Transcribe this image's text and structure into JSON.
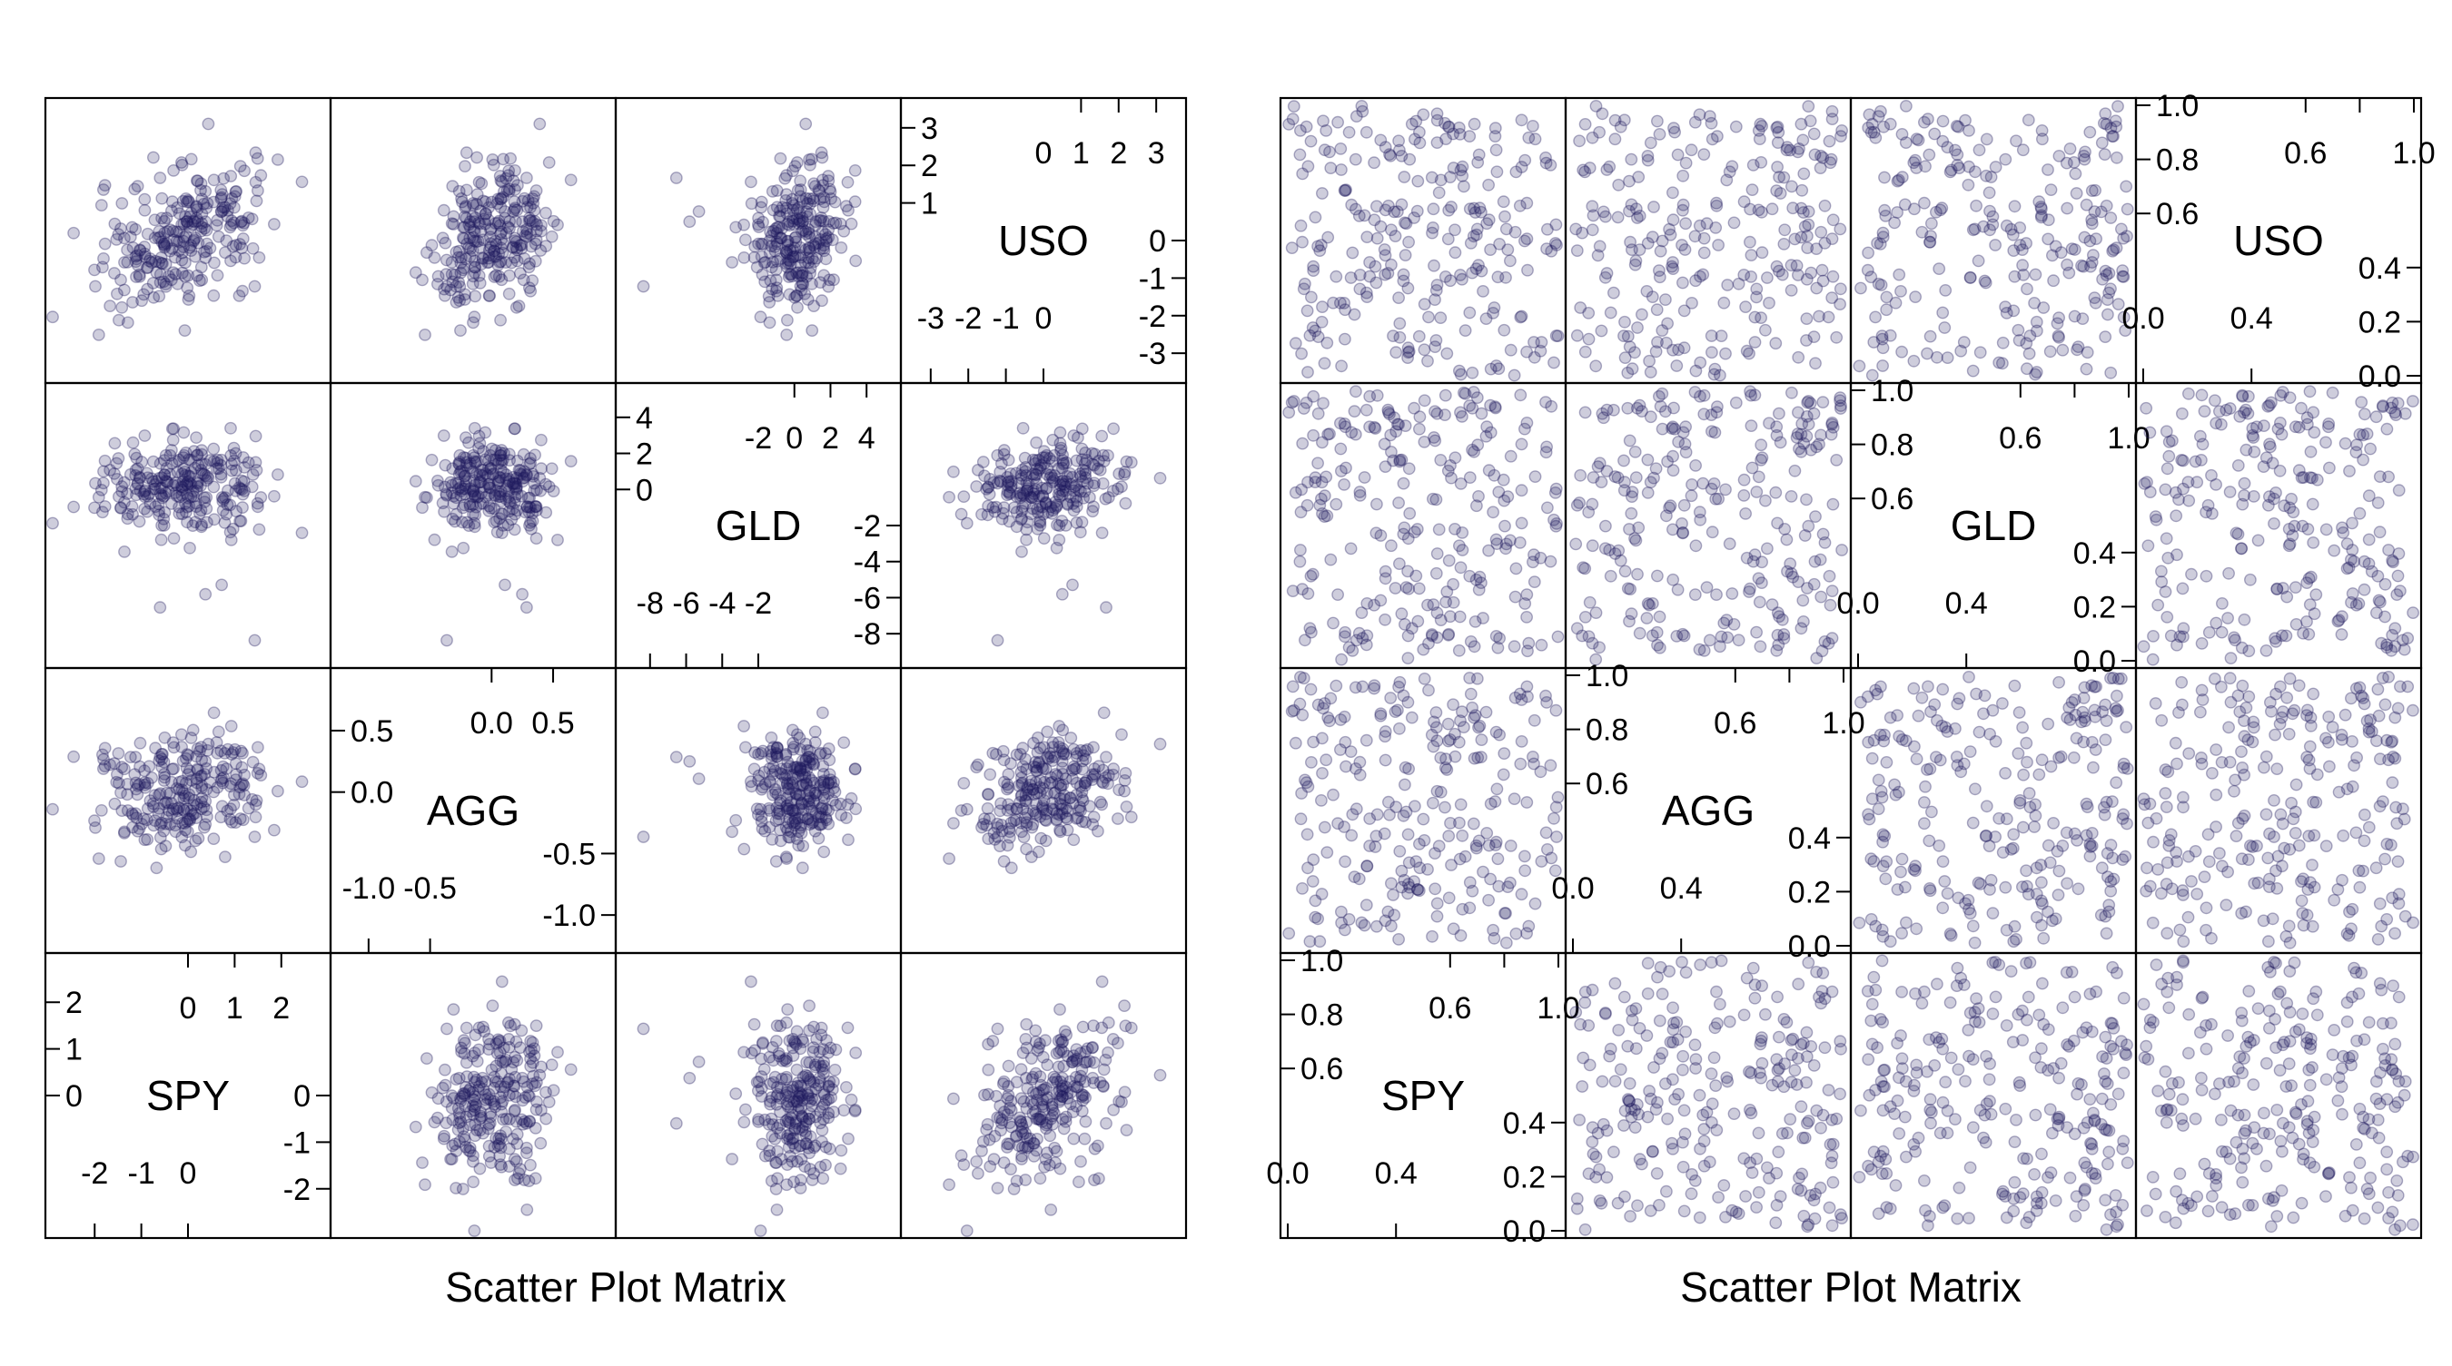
{
  "colors": {
    "point": "#1f1a5e",
    "point_opacity": 0.22,
    "frame": "#000000"
  },
  "chart_data": [
    {
      "type": "scatter",
      "title": "",
      "xlabel": "Scatter Plot Matrix",
      "ylabel": "",
      "variables": [
        {
          "name": "USO",
          "range": [
            -3.6,
            3.6
          ],
          "ticks_a": [
            "0",
            "1",
            "2",
            "3"
          ],
          "ticks_a_values": [
            0,
            1,
            2,
            3
          ],
          "ticks_b": [
            "0",
            "-1",
            "-2",
            "-3"
          ],
          "ticks_b_values": [
            0,
            -1,
            -2,
            -3
          ],
          "ticks_c": [
            "1",
            "2",
            "3"
          ],
          "ticks_c_values": [
            1,
            2,
            3
          ],
          "ticks_d": [
            "-3",
            "-2",
            "-1",
            "0"
          ],
          "ticks_d_values": [
            -3,
            -2,
            -1,
            0
          ]
        },
        {
          "name": "GLD",
          "range": [
            -9.5,
            5.5
          ],
          "ticks_a": [
            "-2",
            "0",
            "2",
            "4"
          ],
          "ticks_a_values": [
            -2,
            0,
            2,
            4
          ],
          "ticks_b": [
            "-2",
            "-4",
            "-6",
            "-8"
          ],
          "ticks_b_values": [
            -2,
            -4,
            -6,
            -8
          ],
          "ticks_c": [
            "0",
            "2",
            "4"
          ],
          "ticks_c_values": [
            0,
            2,
            4
          ],
          "ticks_d": [
            "-8",
            "-6",
            "-4",
            "-2"
          ],
          "ticks_d_values": [
            -8,
            -6,
            -4,
            -2
          ]
        },
        {
          "name": "AGG",
          "range": [
            -1.25,
            0.95
          ],
          "ticks_a": [
            "0.0",
            "0.5"
          ],
          "ticks_a_values": [
            0.0,
            0.5
          ],
          "ticks_b": [
            "-0.5",
            "-1.0"
          ],
          "ticks_b_values": [
            -0.5,
            -1.0
          ],
          "ticks_c": [
            "0.5",
            "0.0"
          ],
          "ticks_c_values": [
            0.5,
            0.0
          ],
          "ticks_d": [
            "-1.0",
            "-0.5"
          ],
          "ticks_d_values": [
            -1.0,
            -0.5
          ]
        },
        {
          "name": "SPY",
          "range": [
            -2.9,
            2.9
          ],
          "ticks_a": [
            "0",
            "1",
            "2"
          ],
          "ticks_a_values": [
            0,
            1,
            2
          ],
          "ticks_b": [
            "0",
            "-1",
            "-2"
          ],
          "ticks_b_values": [
            0,
            -1,
            -2
          ],
          "ticks_c": [
            "2",
            "1",
            "0"
          ],
          "ticks_c_values": [
            2,
            1,
            0
          ],
          "ticks_d": [
            "-2",
            "-1",
            "0"
          ],
          "ticks_d_values": [
            -2,
            -1,
            0
          ]
        }
      ],
      "n_points": 250,
      "distribution": "approximately normal, weakly correlated returns",
      "grid": false
    },
    {
      "type": "scatter",
      "title": "",
      "xlabel": "Scatter Plot Matrix",
      "ylabel": "",
      "variables": [
        {
          "name": "USO",
          "range": [
            0,
            1
          ],
          "ticks_a": [
            "0.6",
            "1.0"
          ],
          "ticks_a_values": [
            0.6,
            1.0
          ],
          "ticks_b": [
            "0.4",
            "0.2",
            "0.0"
          ],
          "ticks_b_values": [
            0.4,
            0.2,
            0.0
          ],
          "ticks_c": [
            "0.6",
            "0.8",
            "1.0"
          ],
          "ticks_c_values": [
            0.6,
            0.8,
            1.0
          ],
          "ticks_d": [
            "0.0",
            "0.4"
          ],
          "ticks_d_values": [
            0.0,
            0.4
          ]
        },
        {
          "name": "GLD",
          "range": [
            0,
            1
          ],
          "ticks_a": [
            "0.6",
            "1.0"
          ],
          "ticks_a_values": [
            0.6,
            1.0
          ],
          "ticks_b": [
            "0.4",
            "0.2",
            "0.0"
          ],
          "ticks_b_values": [
            0.4,
            0.2,
            0.0
          ],
          "ticks_c": [
            "0.6",
            "0.8",
            "1.0"
          ],
          "ticks_c_values": [
            0.6,
            0.8,
            1.0
          ],
          "ticks_d": [
            "0.0",
            "0.4"
          ],
          "ticks_d_values": [
            0.0,
            0.4
          ]
        },
        {
          "name": "AGG",
          "range": [
            0,
            1
          ],
          "ticks_a": [
            "0.6",
            "1.0"
          ],
          "ticks_a_values": [
            0.6,
            1.0
          ],
          "ticks_b": [
            "0.4",
            "0.2",
            "0.0"
          ],
          "ticks_b_values": [
            0.4,
            0.2,
            0.0
          ],
          "ticks_c": [
            "0.6",
            "0.8",
            "1.0"
          ],
          "ticks_c_values": [
            0.6,
            0.8,
            1.0
          ],
          "ticks_d": [
            "0.0",
            "0.4"
          ],
          "ticks_d_values": [
            0.0,
            0.4
          ]
        },
        {
          "name": "SPY",
          "range": [
            0,
            1
          ],
          "ticks_a": [
            "0.6",
            "1.0"
          ],
          "ticks_a_values": [
            0.6,
            1.0
          ],
          "ticks_b": [
            "0.4",
            "0.2",
            "0.0"
          ],
          "ticks_b_values": [
            0.4,
            0.2,
            0.0
          ],
          "ticks_c": [
            "0.6",
            "0.8",
            "1.0"
          ],
          "ticks_c_values": [
            0.6,
            0.8,
            1.0
          ],
          "ticks_d": [
            "0.0",
            "0.4"
          ],
          "ticks_d_values": [
            0.0,
            0.4
          ]
        }
      ],
      "n_points": 250,
      "distribution": "uniform on [0,1] (rank / copula transform)",
      "grid": false
    }
  ]
}
